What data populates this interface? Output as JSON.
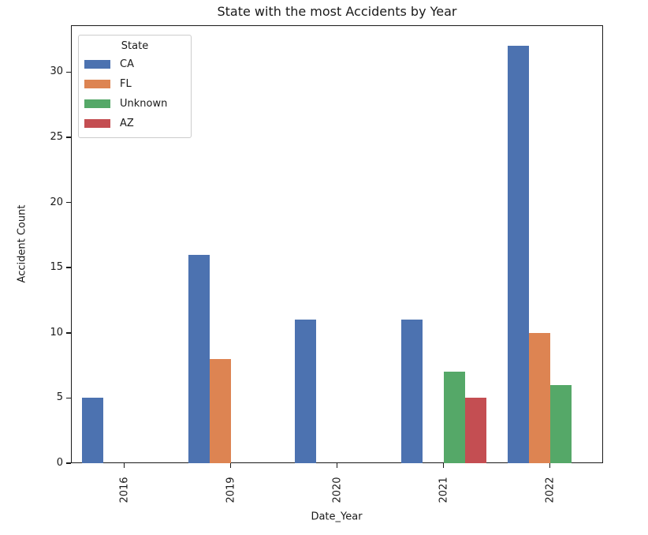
{
  "chart_data": {
    "type": "bar",
    "title": "State with the most Accidents by Year",
    "xlabel": "Date_Year",
    "ylabel": "Accident Count",
    "categories": [
      "2016",
      "2019",
      "2020",
      "2021",
      "2022"
    ],
    "series": [
      {
        "name": "CA",
        "color": "#4C72B0",
        "values": [
          5,
          16,
          11,
          11,
          32
        ]
      },
      {
        "name": "FL",
        "color": "#DD8452",
        "values": [
          null,
          8,
          null,
          null,
          10
        ]
      },
      {
        "name": "Unknown",
        "color": "#55A868",
        "values": [
          null,
          null,
          null,
          7,
          6
        ]
      },
      {
        "name": "AZ",
        "color": "#C44E52",
        "values": [
          null,
          null,
          null,
          5,
          null
        ]
      }
    ],
    "yticks": [
      0,
      5,
      10,
      15,
      20,
      25,
      30
    ],
    "ylim": [
      0,
      33.6
    ],
    "x_tick_rotation": 90,
    "grid": false,
    "legend": {
      "title": "State",
      "position": "upper-left",
      "entries": [
        "CA",
        "FL",
        "Unknown",
        "AZ"
      ]
    },
    "colors": {
      "spine": "#1a1a1a",
      "background": "#ffffff"
    }
  }
}
